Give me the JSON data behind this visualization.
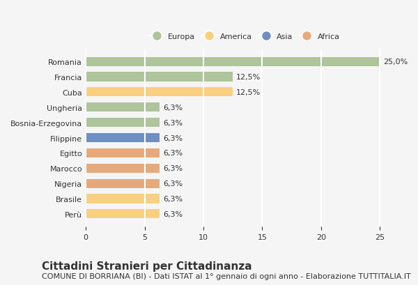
{
  "categories": [
    "Romania",
    "Francia",
    "Cuba",
    "Ungheria",
    "Bosnia-Erzegovina",
    "Filippine",
    "Egitto",
    "Marocco",
    "Nigeria",
    "Brasile",
    "Perù"
  ],
  "values": [
    25.0,
    12.5,
    12.5,
    6.3,
    6.3,
    6.3,
    6.3,
    6.3,
    6.3,
    6.3,
    6.3
  ],
  "colors": [
    "#aec49a",
    "#aec49a",
    "#f9d080",
    "#aec49a",
    "#aec49a",
    "#6e8fc0",
    "#e8a97a",
    "#e8a97a",
    "#e8a97a",
    "#f9d080",
    "#f9d080"
  ],
  "labels": [
    "25,0%",
    "12,5%",
    "12,5%",
    "6,3%",
    "6,3%",
    "6,3%",
    "6,3%",
    "6,3%",
    "6,3%",
    "6,3%",
    "6,3%"
  ],
  "legend": [
    {
      "label": "Europa",
      "color": "#aec49a"
    },
    {
      "label": "America",
      "color": "#f9d080"
    },
    {
      "label": "Asia",
      "color": "#6e8fc0"
    },
    {
      "label": "Africa",
      "color": "#e8a97a"
    }
  ],
  "xlim": [
    0,
    27
  ],
  "xticks": [
    0,
    5,
    10,
    15,
    20,
    25
  ],
  "title": "Cittadini Stranieri per Cittadinanza",
  "subtitle": "COMUNE DI BORRIANA (BI) - Dati ISTAT al 1° gennaio di ogni anno - Elaborazione TUTTITALIA.IT",
  "bg_color": "#f5f5f5",
  "grid_color": "#ffffff",
  "text_color": "#333333",
  "title_fontsize": 11,
  "subtitle_fontsize": 8,
  "label_fontsize": 8,
  "tick_fontsize": 8,
  "bar_height": 0.6
}
